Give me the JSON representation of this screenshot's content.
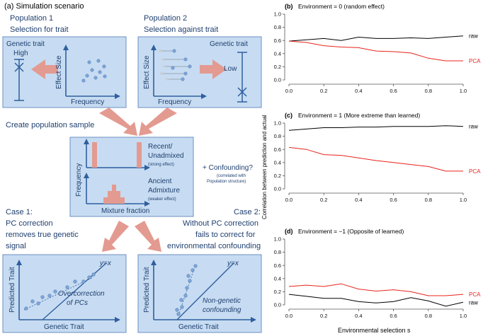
{
  "scenario": {
    "panel_label": "(a) Simulation scenario",
    "pop1_title": "Population 1",
    "pop1_sub": "Selection for trait",
    "pop2_title": "Population 2",
    "pop2_sub": "Selection against trait",
    "genetic_trait": "Genetic trait",
    "high": "High",
    "low": "Low",
    "effect_size": "Effect Size",
    "frequency": "Frequency",
    "create_sample": "Create population sample",
    "recent_1": "Recent/",
    "recent_2": "Unadmixed",
    "recent_note": "(strong effect)",
    "ancient_1": "Ancient",
    "ancient_2": "Admixture",
    "ancient_note": "(weaker effect)",
    "mixture_fraction": "Mixture fraction",
    "confounding": "+ Confounding?",
    "confounding_note_1": "(correlated with",
    "confounding_note_2": "Population structure)",
    "case1_1": "Case 1:",
    "case1_2": "PC correction",
    "case1_3": "removes true genetic",
    "case1_4": "signal",
    "case2_1": "Case 2:",
    "case2_2": "Without PC correction",
    "case2_3": "fails to correct for",
    "case2_4": "environmental confounding",
    "yx": "y=x",
    "predicted_trait": "Predicted Trait",
    "genetic_trait_x": "Genetic Trait",
    "over_1": "Overcorrection",
    "over_2": "of PCs",
    "nong_1": "Non-genetic",
    "nong_2": "confounding"
  },
  "charts_common": {
    "ylabel": "Correlation between prediction and actual",
    "xlabel": "Environmental selection s"
  },
  "chart_data": [
    {
      "type": "line",
      "label": "(b)",
      "title": "Environment = 0 (random effect)",
      "x": [
        0,
        0.1,
        0.2,
        0.3,
        0.4,
        0.5,
        0.6,
        0.7,
        0.8,
        0.9,
        1.0
      ],
      "xlim": [
        0,
        1
      ],
      "ylim": [
        0,
        1
      ],
      "xticks": [
        "0.0",
        "0.2",
        "0.4",
        "0.6",
        "0.8",
        "1.0"
      ],
      "yticks": [
        "0.0",
        "0.2",
        "0.4",
        "0.6",
        "0.8",
        "1.0"
      ],
      "series": [
        {
          "name": "raw",
          "color": "#000000",
          "values": [
            0.59,
            0.61,
            0.63,
            0.6,
            0.65,
            0.63,
            0.63,
            0.64,
            0.63,
            0.65,
            0.67
          ]
        },
        {
          "name": "PCA",
          "color": "#e8231c",
          "values": [
            0.59,
            0.57,
            0.52,
            0.5,
            0.49,
            0.44,
            0.43,
            0.41,
            0.33,
            0.29,
            0.29
          ]
        }
      ]
    },
    {
      "type": "line",
      "label": "(c)",
      "title": "Environment = 1 (More extreme than learned)",
      "x": [
        0,
        0.1,
        0.2,
        0.3,
        0.4,
        0.5,
        0.6,
        0.7,
        0.8,
        0.9,
        1.0
      ],
      "xlim": [
        0,
        1
      ],
      "ylim": [
        0,
        1
      ],
      "xticks": [
        "0.0",
        "0.2",
        "0.4",
        "0.6",
        "0.8",
        "1.0"
      ],
      "yticks": [
        "0.0",
        "0.2",
        "0.4",
        "0.6",
        "0.8",
        "1.0"
      ],
      "series": [
        {
          "name": "raw",
          "color": "#000000",
          "values": [
            0.89,
            0.91,
            0.93,
            0.93,
            0.94,
            0.94,
            0.95,
            0.95,
            0.95,
            0.96,
            0.95
          ]
        },
        {
          "name": "PCA",
          "color": "#e8231c",
          "values": [
            0.63,
            0.6,
            0.52,
            0.51,
            0.47,
            0.43,
            0.4,
            0.37,
            0.34,
            0.27,
            0.27
          ]
        }
      ]
    },
    {
      "type": "line",
      "label": "(d)",
      "title": "Environment = −1 (Opposite of learned)",
      "x": [
        0,
        0.1,
        0.2,
        0.3,
        0.4,
        0.5,
        0.6,
        0.7,
        0.8,
        0.9,
        1.0
      ],
      "xlim": [
        0,
        1
      ],
      "ylim": [
        0,
        1
      ],
      "xticks": [
        "0.0",
        "0.2",
        "0.4",
        "0.6",
        "0.8",
        "1.0"
      ],
      "yticks": [
        "0.0",
        "0.2",
        "0.4",
        "0.6",
        "0.8",
        "1.0"
      ],
      "series": [
        {
          "name": "PCA",
          "color": "#e8231c",
          "values": [
            0.28,
            0.3,
            0.28,
            0.32,
            0.24,
            0.21,
            0.23,
            0.2,
            0.14,
            0.14,
            0.16
          ]
        },
        {
          "name": "raw",
          "color": "#000000",
          "values": [
            0.16,
            0.13,
            0.1,
            0.1,
            0.05,
            0.03,
            0.05,
            0.11,
            0.06,
            -0.02,
            0.04
          ]
        }
      ]
    }
  ]
}
